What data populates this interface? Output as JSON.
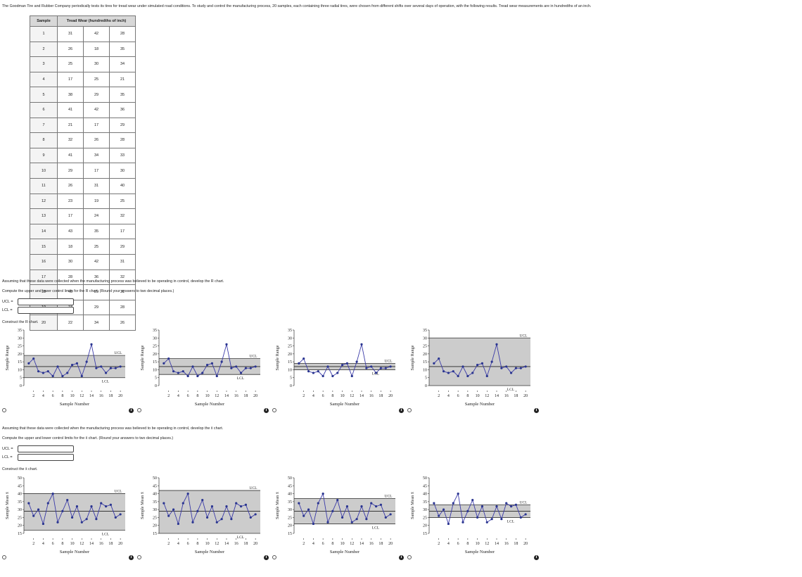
{
  "intro_text": "The Goodman Tire and Rubber Company periodically tests its tires for tread wear under simulated road conditions. To study and control the manufacturing process, 20 samples, each containing three radial tires, were chosen from different shifts over several days of operation, with the following results. Tread wear measurements are in hundredths of an inch.",
  "table": {
    "header_sample": "Sample",
    "header_tread": "Tread Wear (hundredths of inch)",
    "rows": [
      [
        "1",
        "31",
        "42",
        "28"
      ],
      [
        "2",
        "26",
        "18",
        "35"
      ],
      [
        "3",
        "25",
        "30",
        "34"
      ],
      [
        "4",
        "17",
        "25",
        "21"
      ],
      [
        "5",
        "38",
        "29",
        "35"
      ],
      [
        "6",
        "41",
        "42",
        "36"
      ],
      [
        "7",
        "21",
        "17",
        "29"
      ],
      [
        "8",
        "32",
        "26",
        "28"
      ],
      [
        "9",
        "41",
        "34",
        "33"
      ],
      [
        "10",
        "29",
        "17",
        "30"
      ],
      [
        "11",
        "26",
        "31",
        "40"
      ],
      [
        "12",
        "23",
        "19",
        "25"
      ],
      [
        "13",
        "17",
        "24",
        "32"
      ],
      [
        "14",
        "43",
        "35",
        "17"
      ],
      [
        "15",
        "18",
        "25",
        "29"
      ],
      [
        "16",
        "30",
        "42",
        "31"
      ],
      [
        "17",
        "28",
        "36",
        "32"
      ],
      [
        "18",
        "40",
        "29",
        "31"
      ],
      [
        "19",
        "18",
        "29",
        "28"
      ],
      [
        "20",
        "22",
        "34",
        "26"
      ]
    ]
  },
  "r_section": {
    "assume_text": "Assuming that these data were collected when the manufacturing process was believed to be operating in control, develop the R chart.",
    "compute_text": "Compute the upper and lower control limits for the R chart. (Round your answers to two decimal places.)",
    "ucl_label": "UCL =",
    "lcl_label": "LCL =",
    "ucl_value": "",
    "lcl_value": "",
    "construct_text": "Construct the R chart."
  },
  "xbar_section": {
    "assume_text": "Assuming that these data were collected when the manufacturing process was believed to be operating in control, develop the x̄ chart.",
    "compute_text": "Compute the upper and lower control limits for the x̄ chart. (Round your answers to two decimal places.)",
    "ucl_label": "UCL =",
    "lcl_label": "LCL =",
    "ucl_value": "",
    "lcl_value": "",
    "construct_text": "Construct the x̄ chart."
  },
  "colors": {
    "band": "#cccccc",
    "line": "#3a3aa8",
    "point": "#2a3590",
    "center": "#222222"
  },
  "chart_data": [
    {
      "id": "r-a",
      "type": "line",
      "xlabel": "Sample Number",
      "ylabel": "Sample Range",
      "xticks": [
        2,
        4,
        6,
        8,
        10,
        12,
        14,
        16,
        18,
        20
      ],
      "yticks": [
        0,
        5,
        10,
        15,
        20,
        25,
        30,
        35
      ],
      "ylim": [
        0,
        35
      ],
      "xlim": [
        0,
        21
      ],
      "ucl": 19,
      "lcl": 5,
      "center": 12,
      "ucl_label": "UCL",
      "lcl_label": "LCL",
      "x": [
        1,
        2,
        3,
        4,
        5,
        6,
        7,
        8,
        9,
        10,
        11,
        12,
        13,
        14,
        15,
        16,
        17,
        18,
        19,
        20
      ],
      "values": [
        14,
        17,
        9,
        8,
        9,
        6,
        12,
        6,
        8,
        13,
        14,
        6,
        15,
        26,
        11,
        12,
        8,
        11,
        11,
        12
      ]
    },
    {
      "id": "r-b",
      "type": "line",
      "xlabel": "Sample Number",
      "ylabel": "Sample Range",
      "xticks": [
        2,
        4,
        6,
        8,
        10,
        12,
        14,
        16,
        18,
        20
      ],
      "yticks": [
        0,
        5,
        10,
        15,
        20,
        25,
        30,
        35
      ],
      "ylim": [
        0,
        35
      ],
      "xlim": [
        0,
        21
      ],
      "ucl": 17,
      "lcl": 7,
      "center": 12,
      "ucl_label": "UCL",
      "lcl_label": "LCL",
      "x": [
        1,
        2,
        3,
        4,
        5,
        6,
        7,
        8,
        9,
        10,
        11,
        12,
        13,
        14,
        15,
        16,
        17,
        18,
        19,
        20
      ],
      "values": [
        14,
        17,
        9,
        8,
        9,
        6,
        12,
        6,
        8,
        13,
        14,
        6,
        15,
        26,
        11,
        12,
        8,
        11,
        11,
        12
      ]
    },
    {
      "id": "r-c",
      "type": "line",
      "xlabel": "Sample Number",
      "ylabel": "Sample Range",
      "xticks": [
        2,
        4,
        6,
        8,
        10,
        12,
        14,
        16,
        18,
        20
      ],
      "yticks": [
        0,
        5,
        10,
        15,
        20,
        25,
        30,
        35
      ],
      "ylim": [
        0,
        35
      ],
      "xlim": [
        0,
        21
      ],
      "ucl": 14,
      "lcl": 10,
      "center": 12,
      "ucl_label": "UCL",
      "lcl_label": "LCL",
      "x": [
        1,
        2,
        3,
        4,
        5,
        6,
        7,
        8,
        9,
        10,
        11,
        12,
        13,
        14,
        15,
        16,
        17,
        18,
        19,
        20
      ],
      "values": [
        14,
        17,
        9,
        8,
        9,
        6,
        12,
        6,
        8,
        13,
        14,
        6,
        15,
        26,
        11,
        12,
        8,
        11,
        11,
        12
      ]
    },
    {
      "id": "r-d",
      "type": "line",
      "xlabel": "Sample Number",
      "ylabel": "Sample Range",
      "xticks": [
        2,
        4,
        6,
        8,
        10,
        12,
        14,
        16,
        18,
        20
      ],
      "yticks": [
        0,
        5,
        10,
        15,
        20,
        25,
        30,
        35
      ],
      "ylim": [
        0,
        35
      ],
      "xlim": [
        0,
        21
      ],
      "ucl": 30,
      "lcl": 0,
      "center": 12,
      "ucl_label": "UCL",
      "lcl_label": "LCL",
      "x": [
        1,
        2,
        3,
        4,
        5,
        6,
        7,
        8,
        9,
        10,
        11,
        12,
        13,
        14,
        15,
        16,
        17,
        18,
        19,
        20
      ],
      "values": [
        14,
        17,
        9,
        8,
        9,
        6,
        12,
        6,
        8,
        13,
        14,
        6,
        15,
        26,
        11,
        12,
        8,
        11,
        11,
        12
      ]
    },
    {
      "id": "x-a",
      "type": "line",
      "xlabel": "Sample Number",
      "ylabel": "Sample Mean x̄",
      "xticks": [
        2,
        4,
        6,
        8,
        10,
        12,
        14,
        16,
        18,
        20
      ],
      "yticks": [
        15,
        20,
        25,
        30,
        35,
        40,
        45,
        50
      ],
      "ylim": [
        15,
        50
      ],
      "xlim": [
        0,
        21
      ],
      "ucl": 40,
      "lcl": 17,
      "center": 29,
      "ucl_label": "UCL",
      "lcl_label": "LCL",
      "x": [
        1,
        2,
        3,
        4,
        5,
        6,
        7,
        8,
        9,
        10,
        11,
        12,
        13,
        14,
        15,
        16,
        17,
        18,
        19,
        20
      ],
      "values": [
        34,
        26,
        30,
        21,
        34,
        40,
        22,
        29,
        36,
        25,
        32,
        22,
        24,
        32,
        24,
        34,
        32,
        33,
        25,
        27
      ]
    },
    {
      "id": "x-b",
      "type": "line",
      "xlabel": "Sample Number",
      "ylabel": "Sample Mean x̄",
      "xticks": [
        2,
        4,
        6,
        8,
        10,
        12,
        14,
        16,
        18,
        20
      ],
      "yticks": [
        15,
        20,
        25,
        30,
        35,
        40,
        45,
        50
      ],
      "ylim": [
        15,
        50
      ],
      "xlim": [
        0,
        21
      ],
      "ucl": 42,
      "lcl": 15,
      "center": 29,
      "ucl_label": "UCL",
      "lcl_label": "LCL",
      "x": [
        1,
        2,
        3,
        4,
        5,
        6,
        7,
        8,
        9,
        10,
        11,
        12,
        13,
        14,
        15,
        16,
        17,
        18,
        19,
        20
      ],
      "values": [
        34,
        26,
        30,
        21,
        34,
        40,
        22,
        29,
        36,
        25,
        32,
        22,
        24,
        32,
        24,
        34,
        32,
        33,
        25,
        27
      ]
    },
    {
      "id": "x-c",
      "type": "line",
      "xlabel": "Sample Number",
      "ylabel": "Sample Mean x̄",
      "xticks": [
        2,
        4,
        6,
        8,
        10,
        12,
        14,
        16,
        18,
        20
      ],
      "yticks": [
        15,
        20,
        25,
        30,
        35,
        40,
        45,
        50
      ],
      "ylim": [
        15,
        50
      ],
      "xlim": [
        0,
        21
      ],
      "ucl": 37,
      "lcl": 21,
      "center": 29,
      "ucl_label": "UCL",
      "lcl_label": "LCL",
      "x": [
        1,
        2,
        3,
        4,
        5,
        6,
        7,
        8,
        9,
        10,
        11,
        12,
        13,
        14,
        15,
        16,
        17,
        18,
        19,
        20
      ],
      "values": [
        34,
        26,
        30,
        21,
        34,
        40,
        22,
        29,
        36,
        25,
        32,
        22,
        24,
        32,
        24,
        34,
        32,
        33,
        25,
        27
      ]
    },
    {
      "id": "x-d",
      "type": "line",
      "xlabel": "Sample Number",
      "ylabel": "Sample Mean x̄",
      "xticks": [
        2,
        4,
        6,
        8,
        10,
        12,
        14,
        16,
        18,
        20
      ],
      "yticks": [
        15,
        20,
        25,
        30,
        35,
        40,
        45,
        50
      ],
      "ylim": [
        15,
        50
      ],
      "xlim": [
        0,
        21
      ],
      "ucl": 33,
      "lcl": 25,
      "center": 29,
      "ucl_label": "UCL",
      "lcl_label": "LCL",
      "x": [
        1,
        2,
        3,
        4,
        5,
        6,
        7,
        8,
        9,
        10,
        11,
        12,
        13,
        14,
        15,
        16,
        17,
        18,
        19,
        20
      ],
      "values": [
        34,
        26,
        30,
        21,
        34,
        40,
        22,
        29,
        36,
        25,
        32,
        22,
        24,
        32,
        24,
        34,
        32,
        33,
        25,
        27
      ]
    }
  ]
}
